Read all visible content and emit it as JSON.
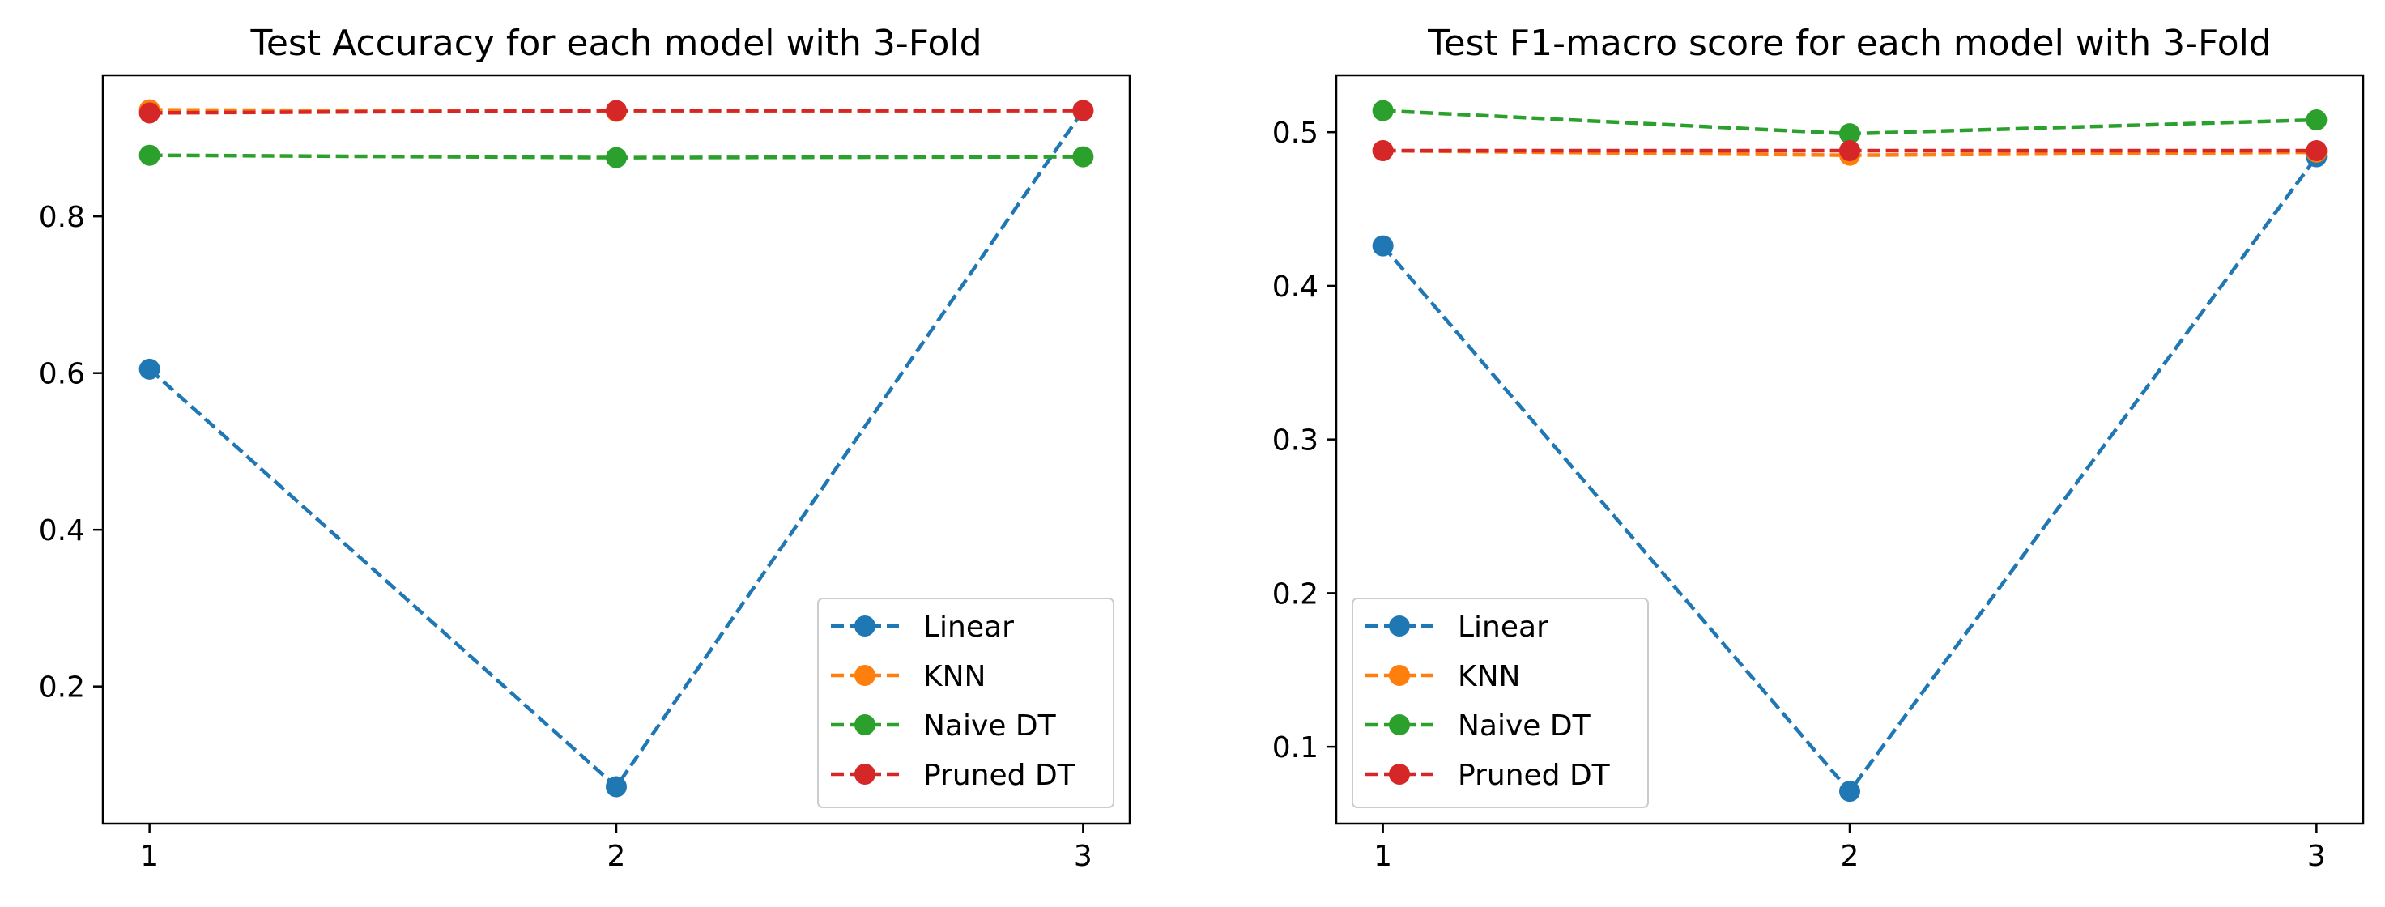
{
  "chart_data": [
    {
      "type": "line",
      "title": "Test Accuracy for each model with 3-Fold",
      "xlabel": "",
      "ylabel": "",
      "x": [
        1,
        2,
        3
      ],
      "xticks": [
        "1",
        "2",
        "3"
      ],
      "xlim": [
        0.9,
        3.1
      ],
      "ylim": [
        0.025,
        0.98
      ],
      "yticks": [
        "0.2",
        "0.4",
        "0.6",
        "0.8"
      ],
      "grid": false,
      "legend": "lower-right",
      "series": [
        {
          "name": "Linear",
          "color": "#1f77b4",
          "values": [
            0.605,
            0.072,
            0.935
          ]
        },
        {
          "name": "KNN",
          "color": "#ff7f0e",
          "values": [
            0.936,
            0.934,
            0.935
          ]
        },
        {
          "name": "Naive DT",
          "color": "#2ca02c",
          "values": [
            0.878,
            0.875,
            0.876
          ]
        },
        {
          "name": "Pruned DT",
          "color": "#d62728",
          "values": [
            0.932,
            0.935,
            0.935
          ]
        }
      ]
    },
    {
      "type": "line",
      "title": "Test F1-macro score for each model with 3-Fold",
      "xlabel": "",
      "ylabel": "",
      "x": [
        1,
        2,
        3
      ],
      "xticks": [
        "1",
        "2",
        "3"
      ],
      "xlim": [
        0.9,
        3.1
      ],
      "ylim": [
        0.05,
        0.537
      ],
      "yticks": [
        "0.1",
        "0.2",
        "0.3",
        "0.4",
        "0.5"
      ],
      "grid": false,
      "legend": "lower-left",
      "series": [
        {
          "name": "Linear",
          "color": "#1f77b4",
          "values": [
            0.426,
            0.071,
            0.484
          ]
        },
        {
          "name": "KNN",
          "color": "#ff7f0e",
          "values": [
            0.488,
            0.485,
            0.487
          ]
        },
        {
          "name": "Naive DT",
          "color": "#2ca02c",
          "values": [
            0.514,
            0.499,
            0.508
          ]
        },
        {
          "name": "Pruned DT",
          "color": "#d62728",
          "values": [
            0.488,
            0.488,
            0.488
          ]
        }
      ]
    }
  ]
}
